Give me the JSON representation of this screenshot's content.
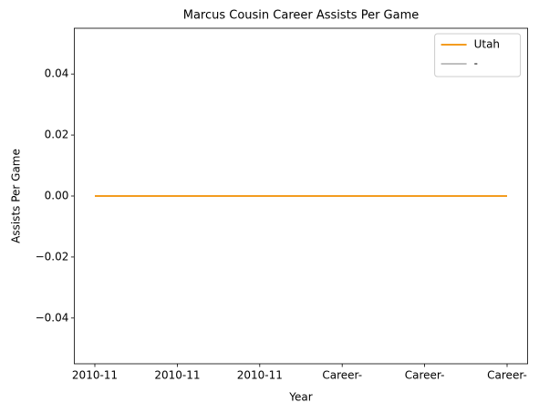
{
  "chart_data": {
    "type": "line",
    "title": "Marcus Cousin Career Assists Per Game",
    "xlabel": "Year",
    "ylabel": "Assists Per Game",
    "categories": [
      "2010-11",
      "2010-11",
      "2010-11",
      "Career-",
      "Career-",
      "Career-"
    ],
    "series": [
      {
        "name": "Utah",
        "color": "#f39c1f",
        "values": [
          0,
          0,
          0,
          0,
          0,
          0
        ]
      },
      {
        "name": "-",
        "color": "#bfbfbf",
        "values": [
          0,
          0,
          0,
          0,
          0,
          0
        ]
      }
    ],
    "ylim": [
      -0.055,
      0.055
    ],
    "yticks": [
      {
        "value": -0.04,
        "label": "−0.04"
      },
      {
        "value": -0.02,
        "label": "−0.02"
      },
      {
        "value": 0,
        "label": "0.00"
      },
      {
        "value": 0.02,
        "label": "0.02"
      },
      {
        "value": 0.04,
        "label": "0.04"
      }
    ],
    "legend": "upper right",
    "grid": false
  }
}
